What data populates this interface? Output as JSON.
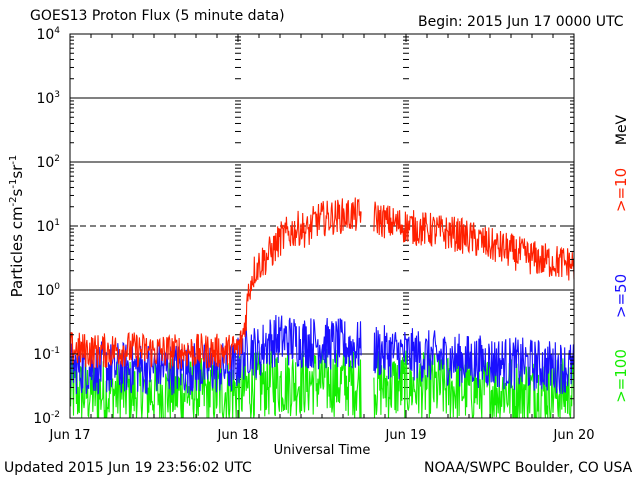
{
  "header": {
    "title": "GOES13 Proton Flux (5 minute data)",
    "begin": "Begin: 2015 Jun 17 0000 UTC"
  },
  "footer": {
    "updated": "Updated 2015 Jun 19 23:56:02 UTC",
    "credit": "NOAA/SWPC Boulder, CO USA"
  },
  "colors": {
    "ge10": "#ff2000",
    "ge50": "#1a10ff",
    "ge100": "#14ee00",
    "grid": "#000000"
  },
  "chart_data": {
    "type": "line",
    "title": "GOES13 Proton Flux (5 minute data)",
    "xlabel": "Universal Time",
    "ylabel_parts": [
      "Particles cm",
      "-2",
      "s",
      "-1",
      "sr",
      "-1"
    ],
    "yscale": "log",
    "ylim": [
      0.01,
      10000
    ],
    "xlim": [
      0,
      72
    ],
    "x_unit": "hours since 2015 Jun 17 0000 UTC",
    "x_ticks": [
      {
        "x": 0,
        "label": "Jun 17"
      },
      {
        "x": 24,
        "label": "Jun 18"
      },
      {
        "x": 48,
        "label": "Jun 19"
      },
      {
        "x": 72,
        "label": "Jun 20"
      }
    ],
    "y_ticks": [
      {
        "value": 0.01,
        "base": "10",
        "exp": "-2"
      },
      {
        "value": 0.1,
        "base": "10",
        "exp": "-1"
      },
      {
        "value": 1,
        "base": "10",
        "exp": "0"
      },
      {
        "value": 10,
        "base": "10",
        "exp": "1"
      },
      {
        "value": 100,
        "base": "10",
        "exp": "2"
      },
      {
        "value": 1000,
        "base": "10",
        "exp": "3"
      },
      {
        "value": 10000,
        "base": "10",
        "exp": "4"
      }
    ],
    "threshold": {
      "value": 10,
      "style": "dashed"
    },
    "right_unit": "MeV",
    "series": [
      {
        "name": ">=10",
        "color": "#ff2000",
        "noise": 0.28,
        "x": [
          0,
          4,
          8,
          12,
          16,
          20,
          23,
          24,
          24.5,
          25,
          25.5,
          26,
          26.5,
          27,
          28,
          29,
          30,
          31,
          32,
          33,
          34,
          35,
          36,
          37,
          38,
          39,
          40,
          41,
          41.5,
          43.5,
          44,
          45,
          46,
          47,
          48,
          49,
          50,
          51,
          52,
          53,
          54,
          55,
          56,
          57,
          58,
          59,
          60,
          61,
          62,
          63,
          64,
          65,
          66,
          67,
          68,
          69,
          70,
          71,
          72
        ],
        "y": [
          0.12,
          0.11,
          0.12,
          0.11,
          0.11,
          0.11,
          0.11,
          0.12,
          0.15,
          0.3,
          0.9,
          1.6,
          2.2,
          2.5,
          3.2,
          4.2,
          6.2,
          7.5,
          8.5,
          9.5,
          8.0,
          12.0,
          13.0,
          13.5,
          14.0,
          14.5,
          15.0,
          14.5,
          14.5,
          13.5,
          13.0,
          12.0,
          11.0,
          10.5,
          10.0,
          9.5,
          9.0,
          8.8,
          8.5,
          8.0,
          7.8,
          7.5,
          7.0,
          6.5,
          6.0,
          5.5,
          5.0,
          4.7,
          4.4,
          4.0,
          3.7,
          3.4,
          3.2,
          3.0,
          2.9,
          2.8,
          2.7,
          2.6,
          2.5
        ],
        "gaps": [
          [
            41.6,
            43.4
          ]
        ]
      },
      {
        "name": ">=50",
        "color": "#1a10ff",
        "noise": 0.42,
        "x": [
          0,
          10,
          20,
          23.5,
          24.5,
          25.5,
          26,
          27,
          28,
          30,
          32,
          35,
          38,
          41,
          44,
          48,
          52,
          56,
          60,
          64,
          68,
          72
        ],
        "y": [
          0.06,
          0.06,
          0.06,
          0.06,
          0.09,
          0.12,
          0.12,
          0.1,
          0.15,
          0.17,
          0.16,
          0.15,
          0.14,
          0.13,
          0.11,
          0.1,
          0.09,
          0.08,
          0.075,
          0.07,
          0.065,
          0.06
        ],
        "gaps": [
          [
            41.6,
            43.4
          ]
        ]
      },
      {
        "name": ">=100",
        "color": "#14ee00",
        "noise": 0.55,
        "x": [
          0,
          10,
          20,
          24,
          26,
          28,
          32,
          36,
          41,
          44,
          48,
          52,
          56,
          60,
          64,
          68,
          72
        ],
        "y": [
          0.025,
          0.025,
          0.025,
          0.026,
          0.03,
          0.035,
          0.037,
          0.037,
          0.035,
          0.033,
          0.032,
          0.03,
          0.029,
          0.028,
          0.027,
          0.026,
          0.025
        ],
        "gaps": [
          [
            41.6,
            43.4
          ]
        ]
      }
    ]
  }
}
